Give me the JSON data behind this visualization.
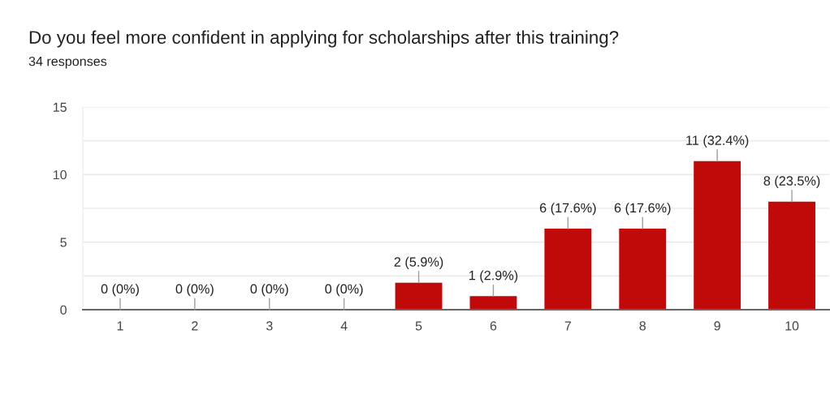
{
  "chart_data": {
    "type": "bar",
    "title": "Do you feel more confident in applying for scholarships after this training?",
    "subtitle": "34 responses",
    "categories": [
      "1",
      "2",
      "3",
      "4",
      "5",
      "6",
      "7",
      "8",
      "9",
      "10"
    ],
    "values": [
      0,
      0,
      0,
      0,
      2,
      1,
      6,
      6,
      11,
      8
    ],
    "value_labels": [
      "0 (0%)",
      "0 (0%)",
      "0 (0%)",
      "0 (0%)",
      "2 (5.9%)",
      "1 (2.9%)",
      "6 (17.6%)",
      "6 (17.6%)",
      "11 (32.4%)",
      "8 (23.5%)"
    ],
    "color": "#c00a0a",
    "ylim": [
      0,
      15
    ],
    "yticks": [
      0,
      {
        "value": 2.5,
        "label": null
      },
      5,
      {
        "value": 7.5,
        "label": null
      },
      10,
      {
        "value": 12.5,
        "label": null
      },
      15
    ],
    "grid": "y"
  }
}
